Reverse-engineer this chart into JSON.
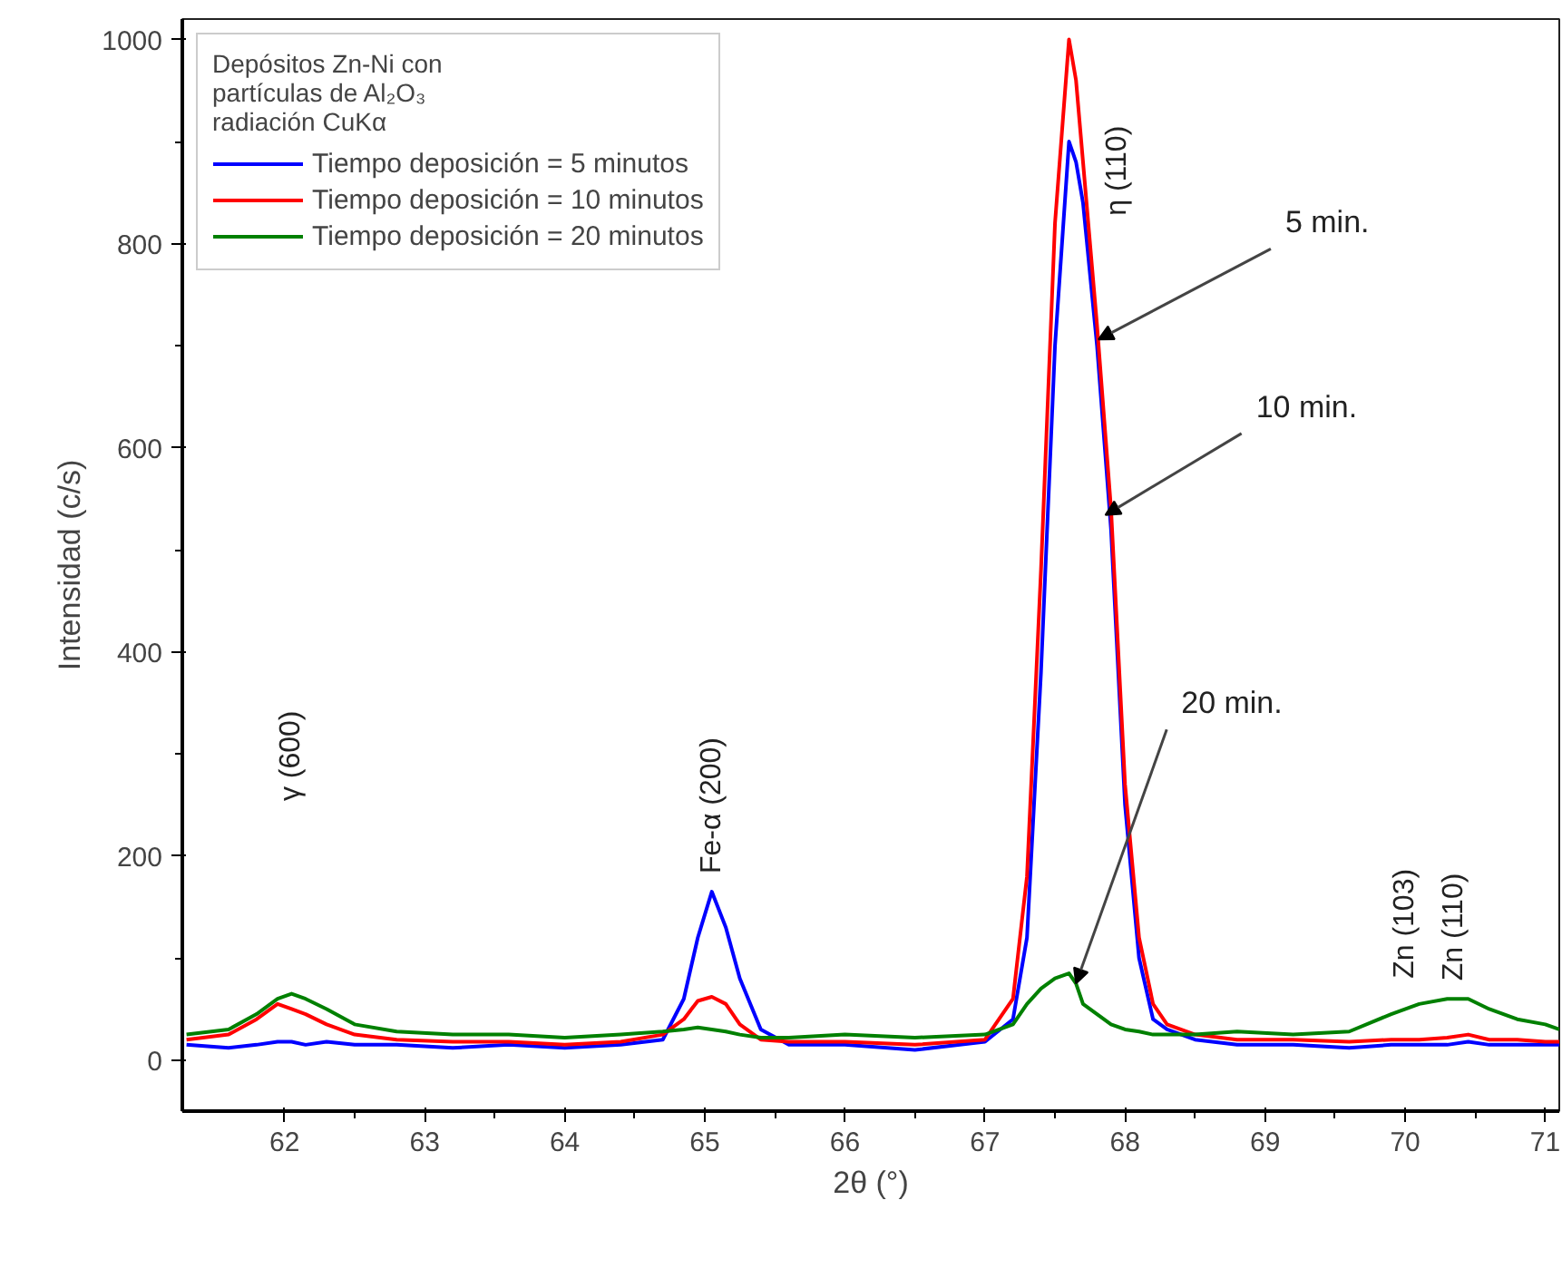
{
  "chart_data": {
    "type": "line",
    "xlabel": "2θ (°)",
    "ylabel": "Intensidad (c/s)",
    "legend_title": "Depósitos Zn-Ni con\npartículas de Al₂O₃\nradiación CuKα",
    "legend": "top left",
    "grid": false,
    "line_style": "solid",
    "marker": "none",
    "xlim": [
      61.27,
      71.1
    ],
    "ylim": [
      -50,
      1020
    ],
    "xticks": [
      62,
      63,
      64,
      65,
      66,
      67,
      68,
      69,
      70,
      71
    ],
    "yticks": [
      0,
      200,
      400,
      600,
      800,
      1000
    ],
    "x": [
      61.3,
      61.6,
      61.8,
      61.95,
      62.05,
      62.15,
      62.3,
      62.5,
      62.8,
      63.2,
      63.6,
      64.0,
      64.4,
      64.7,
      64.85,
      64.95,
      65.05,
      65.15,
      65.25,
      65.4,
      65.6,
      66.0,
      66.5,
      67.0,
      67.2,
      67.3,
      67.4,
      67.5,
      67.6,
      67.65,
      67.7,
      67.8,
      67.9,
      68.0,
      68.1,
      68.2,
      68.3,
      68.5,
      68.8,
      69.2,
      69.6,
      69.9,
      70.1,
      70.3,
      70.45,
      70.6,
      70.8,
      71.0,
      71.1
    ],
    "series": [
      {
        "name": "Tiempo deposición = 5 minutos",
        "color": "#0000ff",
        "values": [
          15,
          12,
          15,
          18,
          18,
          15,
          18,
          15,
          15,
          12,
          15,
          12,
          15,
          20,
          60,
          120,
          165,
          130,
          80,
          30,
          15,
          15,
          10,
          18,
          40,
          120,
          380,
          700,
          900,
          880,
          840,
          700,
          520,
          250,
          100,
          40,
          30,
          20,
          15,
          15,
          12,
          15,
          15,
          15,
          18,
          15,
          15,
          15,
          15
        ]
      },
      {
        "name": "Tiempo deposición = 10 minutos",
        "color": "#ff0000",
        "values": [
          20,
          25,
          40,
          55,
          50,
          45,
          35,
          25,
          20,
          18,
          18,
          15,
          18,
          25,
          40,
          58,
          62,
          55,
          35,
          20,
          18,
          18,
          15,
          20,
          60,
          180,
          480,
          820,
          1000,
          960,
          880,
          720,
          540,
          270,
          120,
          55,
          35,
          25,
          20,
          20,
          18,
          20,
          20,
          22,
          25,
          20,
          20,
          18,
          18
        ]
      },
      {
        "name": "Tiempo deposición = 20 minutos",
        "color": "#008000",
        "values": [
          25,
          30,
          45,
          60,
          65,
          60,
          50,
          35,
          28,
          25,
          25,
          22,
          25,
          28,
          30,
          32,
          30,
          28,
          25,
          22,
          22,
          25,
          22,
          25,
          35,
          55,
          70,
          80,
          85,
          75,
          55,
          45,
          35,
          30,
          28,
          25,
          25,
          25,
          28,
          25,
          28,
          45,
          55,
          60,
          60,
          50,
          40,
          35,
          30
        ]
      }
    ],
    "annotations": [
      "γ (600)",
      {
        "text": "Fe-α (200)",
        "x": 65.05,
        "y": 165
      },
      "η (110)",
      {
        "text": "Zn (103)",
        "x": 70.1,
        "y": 55
      },
      {
        "text": "Zn (110)",
        "x": 70.45,
        "y": 60
      },
      {
        "text": "5 min.",
        "x": 67.81,
        "y": 706
      },
      {
        "text": "10 min.",
        "x": 67.86,
        "y": 534
      },
      {
        "text": "20 min.",
        "x": 67.65,
        "y": 75
      }
    ]
  }
}
